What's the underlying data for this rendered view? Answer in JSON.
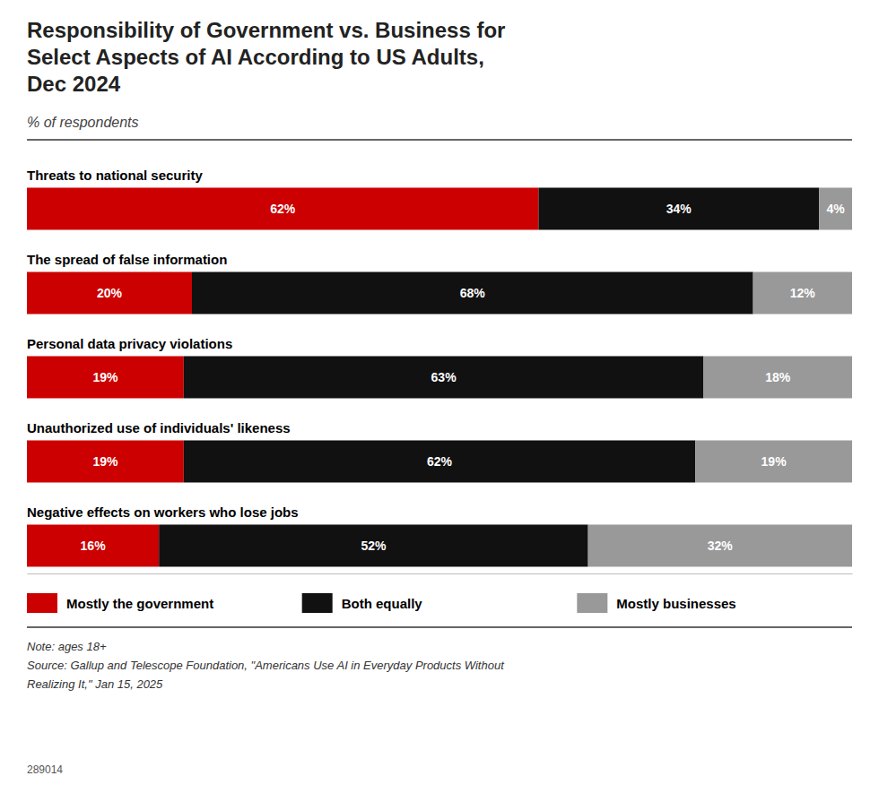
{
  "chart_data": {
    "type": "bar",
    "orientation": "horizontal",
    "stacked": true,
    "title": "Responsibility of Government vs. Business for\nSelect Aspects of AI According to US Adults,\nDec 2024",
    "subtitle": "% of respondents",
    "categories": [
      "Threats to national security",
      "The spread of false information",
      "Personal data privacy violations",
      "Unauthorized use of individuals' likeness",
      "Negative effects on workers who lose jobs"
    ],
    "series": [
      {
        "name": "Mostly the government",
        "color": "#cc0000",
        "values": [
          62,
          20,
          19,
          19,
          16
        ],
        "value_labels": [
          "62%",
          "20%",
          "19%",
          "19%",
          "16%"
        ]
      },
      {
        "name": "Both equally",
        "color": "#111111",
        "values": [
          34,
          68,
          63,
          62,
          52
        ],
        "value_labels": [
          "34%",
          "68%",
          "63%",
          "62%",
          "52%"
        ]
      },
      {
        "name": "Mostly businesses",
        "color": "#999999",
        "values": [
          4,
          12,
          18,
          19,
          32
        ],
        "value_labels": [
          "4%",
          "12%",
          "18%",
          "19%",
          "32%"
        ]
      }
    ],
    "xlim": [
      0,
      100
    ],
    "tick_labels": false,
    "data_labels": true,
    "grid": false,
    "legend": "bottom",
    "annotations": [
      "Note: ages 18+\nSource: Gallup and Telescope Foundation, \"Americans Use AI in Everyday Products Without\nRealizing It,\" Jan 15, 2025",
      "289014"
    ]
  }
}
